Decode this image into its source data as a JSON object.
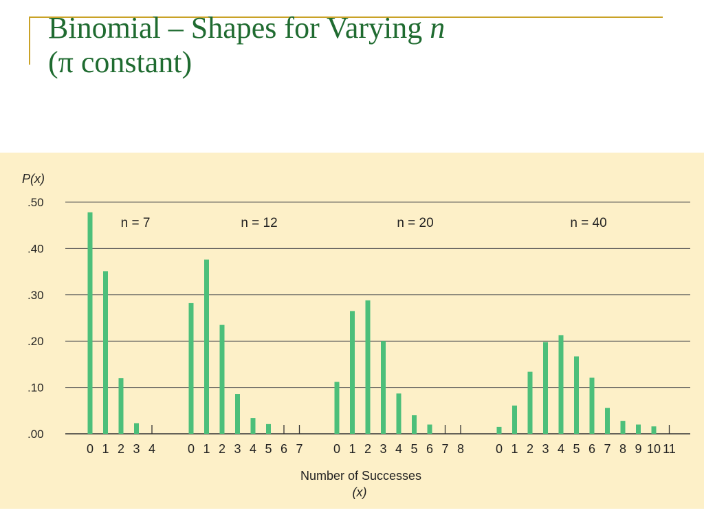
{
  "slide": {
    "title_line1_main": "Binomial – Shapes for Varying ",
    "title_line1_var": "n",
    "title_line2": "(π constant)"
  },
  "colors": {
    "title": "#1f6b30",
    "accent_rule": "#c9a227",
    "panel_background": "#fdf0c8",
    "bar": "#4cbf7a"
  },
  "chart_data": {
    "type": "bar",
    "ylabel": "P(x)",
    "xlabel": "Number of Successes",
    "xlabel_sub": "(x)",
    "ylim": [
      0,
      0.5
    ],
    "yticks": [
      0,
      0.1,
      0.2,
      0.3,
      0.4,
      0.5
    ],
    "ytick_labels": [
      ".00",
      ".10",
      ".20",
      ".30",
      ".40",
      ".50"
    ],
    "grid": true,
    "series": [
      {
        "name": "n = 7",
        "x": [
          0,
          1,
          2,
          3,
          4
        ],
        "values": [
          0.478,
          0.351,
          0.12,
          0.023,
          0
        ]
      },
      {
        "name": "n = 12",
        "x": [
          0,
          1,
          2,
          3,
          4,
          5,
          6,
          7
        ],
        "values": [
          0.282,
          0.376,
          0.235,
          0.086,
          0.034,
          0.021,
          0,
          0
        ]
      },
      {
        "name": "n = 20",
        "x": [
          0,
          1,
          2,
          3,
          4,
          5,
          6,
          7,
          8
        ],
        "values": [
          0.112,
          0.265,
          0.288,
          0.2,
          0.087,
          0.04,
          0.02,
          0,
          0
        ]
      },
      {
        "name": "n = 40",
        "x": [
          0,
          1,
          2,
          3,
          4,
          5,
          6,
          7,
          8,
          9,
          10,
          11
        ],
        "values": [
          0.015,
          0.061,
          0.134,
          0.198,
          0.213,
          0.167,
          0.121,
          0.056,
          0.028,
          0.02,
          0.016,
          0
        ]
      }
    ]
  }
}
